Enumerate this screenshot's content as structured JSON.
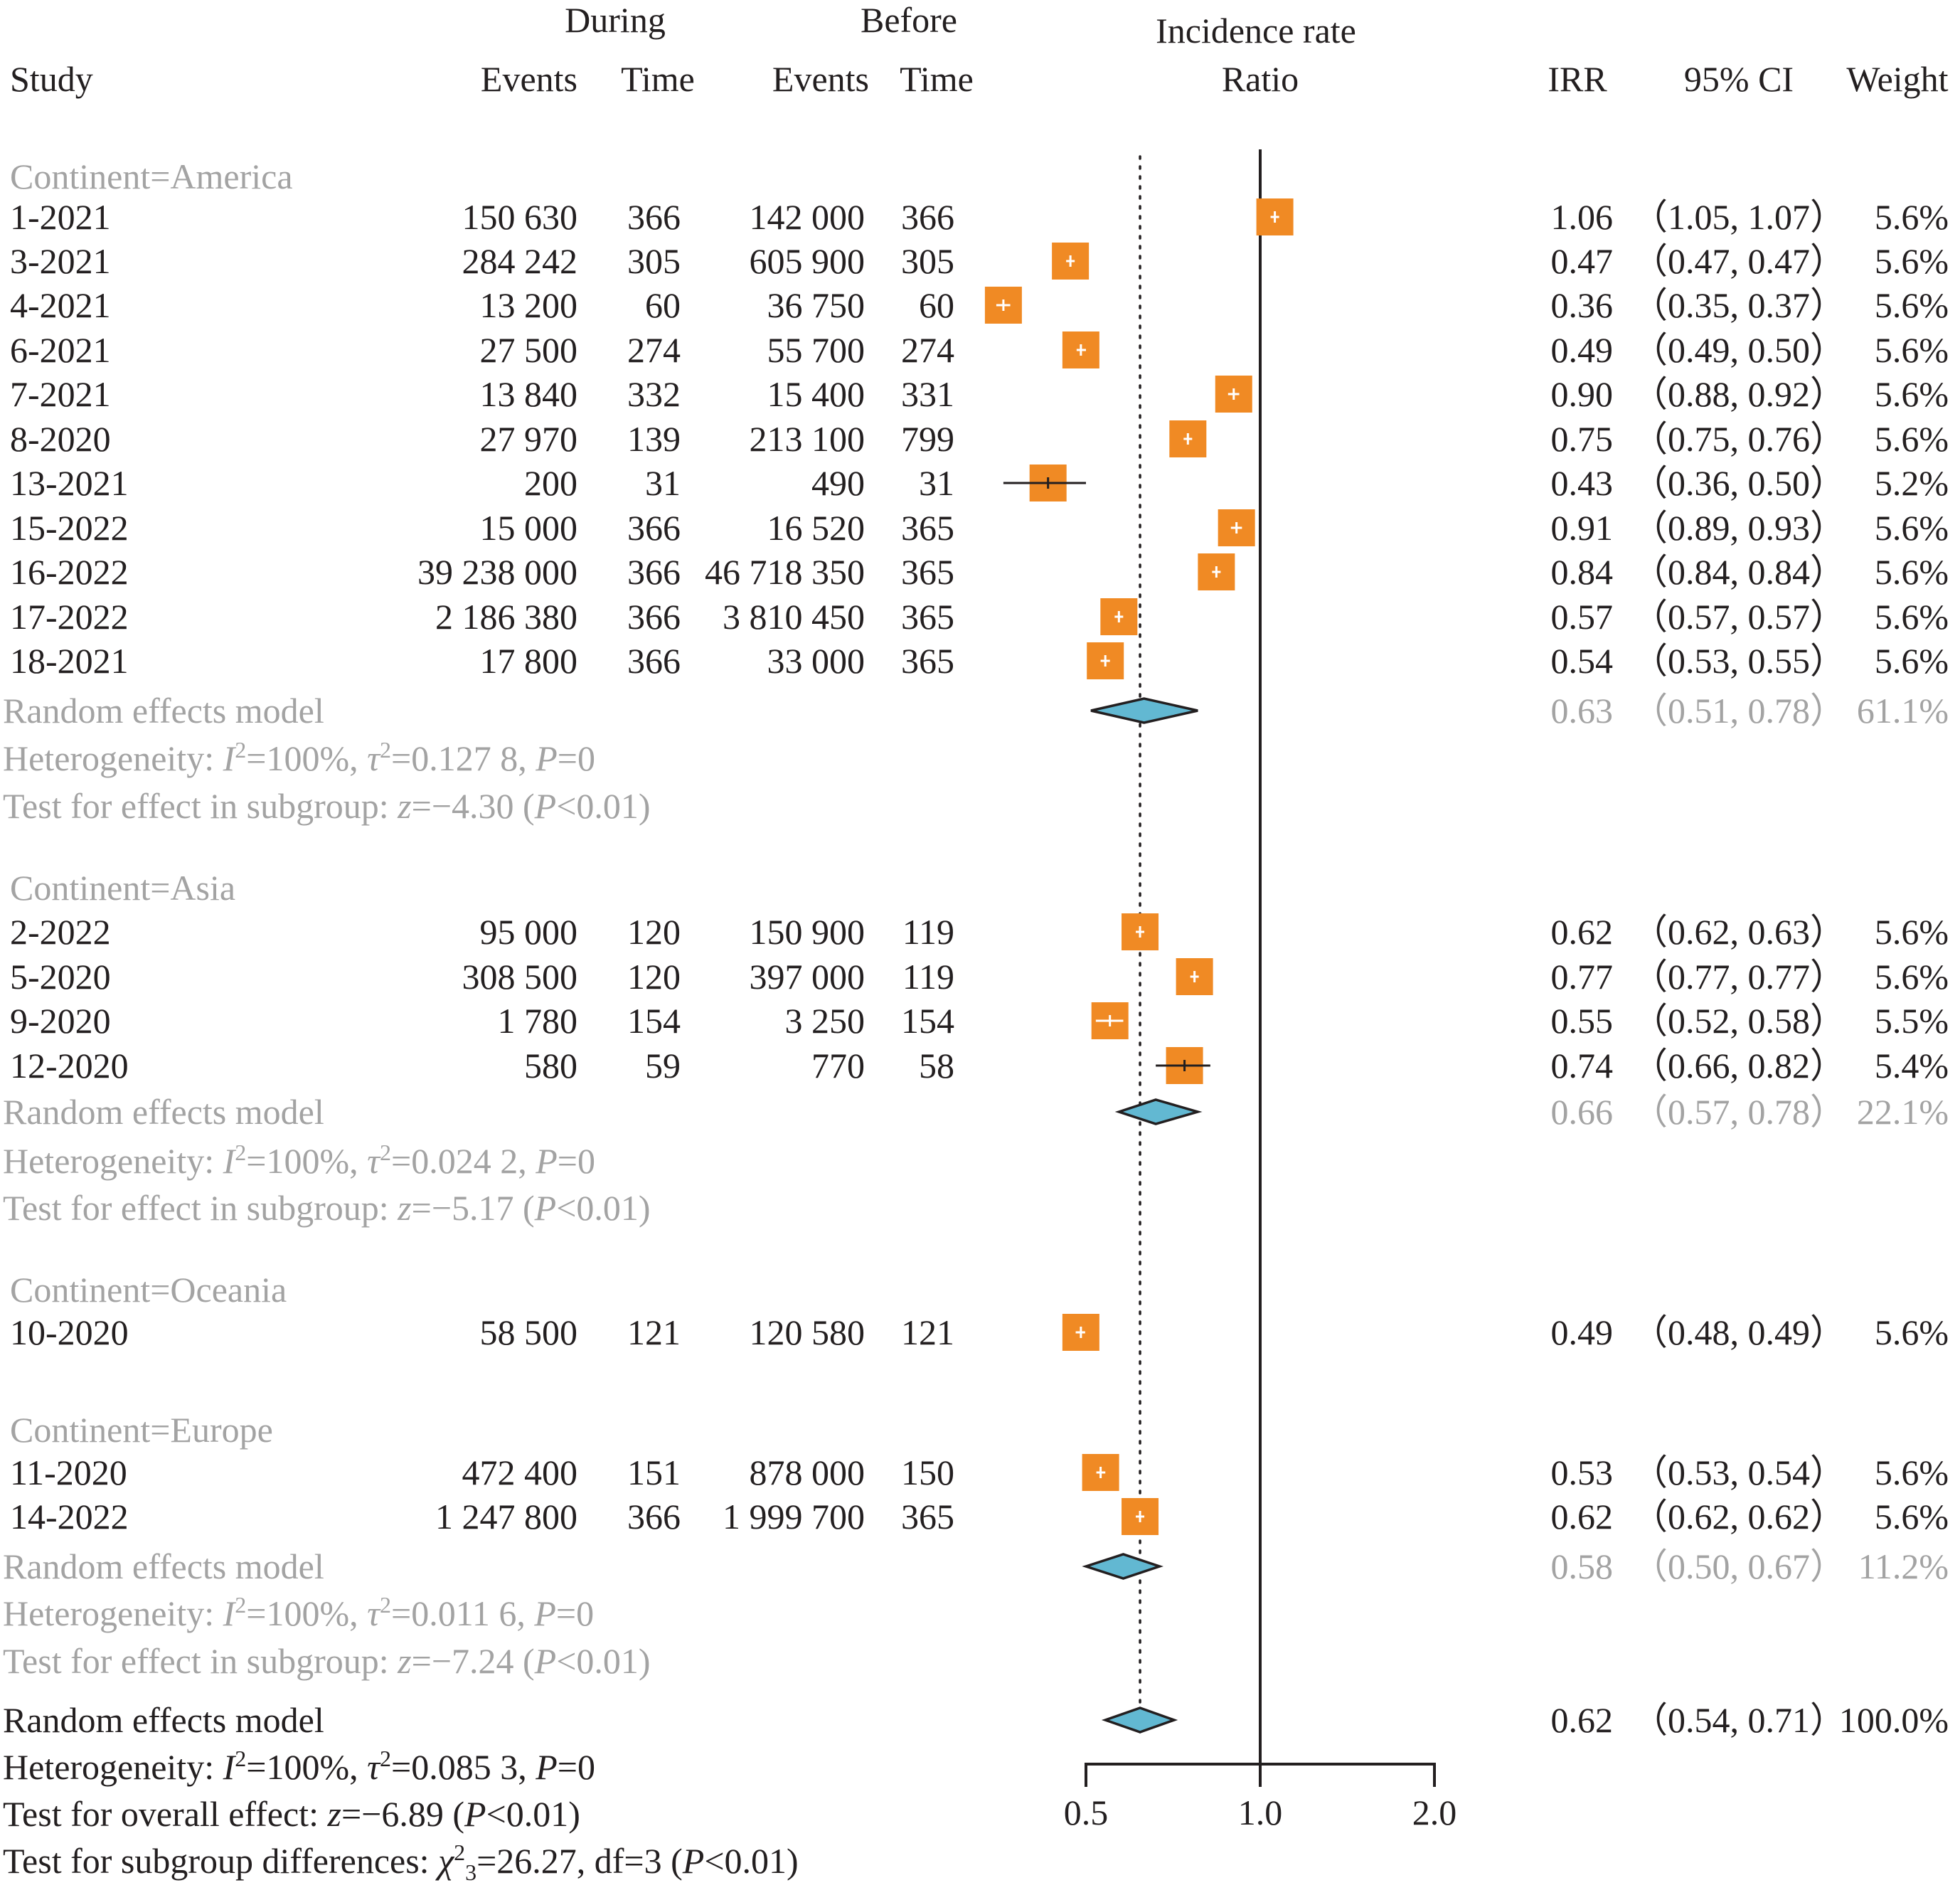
{
  "chart_data": {
    "type": "forest",
    "scale": "log",
    "xlim": [
      0.5,
      2.0
    ],
    "xticks": [
      "0.5",
      "1.0",
      "2.0"
    ],
    "null_line": 1.0,
    "overall_line": 0.62,
    "colors": {
      "box": "#f08a24",
      "diamond": "#62b8d2",
      "grey_text": "#a3a3a3",
      "text": "#231f20"
    },
    "header": {
      "during": "During",
      "before": "Before",
      "study": "Study",
      "events1": "Events",
      "time1": "Time",
      "events2": "Events",
      "time2": "Time",
      "irr_title1": "Incidence rate",
      "irr_title2": "Ratio",
      "irr": "IRR",
      "ci": "95% CI",
      "weight": "Weight"
    },
    "groups": [
      {
        "label": "Continent=America",
        "studies": [
          {
            "study": "1-2021",
            "ev1": "150 630",
            "t1": "366",
            "ev2": "142 000",
            "t2": "366",
            "irr": 1.06,
            "lo": 1.05,
            "hi": 1.07,
            "irr_text": "1.06",
            "ci_text": "（1.05, 1.07）",
            "w_text": "5.6%"
          },
          {
            "study": "3-2021",
            "ev1": "284 242",
            "t1": "305",
            "ev2": "605 900",
            "t2": "305",
            "irr": 0.47,
            "lo": 0.47,
            "hi": 0.47,
            "irr_text": "0.47",
            "ci_text": "（0.47, 0.47）",
            "w_text": "5.6%"
          },
          {
            "study": "4-2021",
            "ev1": "13 200",
            "t1": "60",
            "ev2": "36 750",
            "t2": "60",
            "irr": 0.36,
            "lo": 0.35,
            "hi": 0.37,
            "irr_text": "0.36",
            "ci_text": "（0.35, 0.37）",
            "w_text": "5.6%"
          },
          {
            "study": "6-2021",
            "ev1": "27 500",
            "t1": "274",
            "ev2": "55 700",
            "t2": "274",
            "irr": 0.49,
            "lo": 0.49,
            "hi": 0.5,
            "irr_text": "0.49",
            "ci_text": "（0.49, 0.50）",
            "w_text": "5.6%"
          },
          {
            "study": "7-2021",
            "ev1": "13 840",
            "t1": "332",
            "ev2": "15 400",
            "t2": "331",
            "irr": 0.9,
            "lo": 0.88,
            "hi": 0.92,
            "irr_text": "0.90",
            "ci_text": "（0.88, 0.92）",
            "w_text": "5.6%"
          },
          {
            "study": "8-2020",
            "ev1": "27 970",
            "t1": "139",
            "ev2": "213 100",
            "t2": "799",
            "irr": 0.75,
            "lo": 0.75,
            "hi": 0.76,
            "irr_text": "0.75",
            "ci_text": "（0.75, 0.76）",
            "w_text": "5.6%"
          },
          {
            "study": "13-2021",
            "ev1": "200",
            "t1": "31",
            "ev2": "490",
            "t2": "31",
            "irr": 0.43,
            "lo": 0.36,
            "hi": 0.5,
            "irr_text": "0.43",
            "ci_text": "（0.36, 0.50）",
            "w_text": "5.2%"
          },
          {
            "study": "15-2022",
            "ev1": "15 000",
            "t1": "366",
            "ev2": "16 520",
            "t2": "365",
            "irr": 0.91,
            "lo": 0.89,
            "hi": 0.93,
            "irr_text": "0.91",
            "ci_text": "（0.89, 0.93）",
            "w_text": "5.6%"
          },
          {
            "study": "16-2022",
            "ev1": "39 238 000",
            "t1": "366",
            "ev2": "46 718 350",
            "t2": "365",
            "irr": 0.84,
            "lo": 0.84,
            "hi": 0.84,
            "irr_text": "0.84",
            "ci_text": "（0.84, 0.84）",
            "w_text": "5.6%"
          },
          {
            "study": "17-2022",
            "ev1": "2 186 380",
            "t1": "366",
            "ev2": "3 810 450",
            "t2": "365",
            "irr": 0.57,
            "lo": 0.57,
            "hi": 0.57,
            "irr_text": "0.57",
            "ci_text": "（0.57, 0.57）",
            "w_text": "5.6%"
          },
          {
            "study": "18-2021",
            "ev1": "17 800",
            "t1": "366",
            "ev2": "33 000",
            "t2": "365",
            "irr": 0.54,
            "lo": 0.53,
            "hi": 0.55,
            "irr_text": "0.54",
            "ci_text": "（0.53, 0.55）",
            "w_text": "5.6%"
          }
        ],
        "model": {
          "label": "Random effects model",
          "irr": 0.63,
          "lo": 0.51,
          "hi": 0.78,
          "irr_text": "0.63",
          "ci_text": "（0.51, 0.78）",
          "w_text": "61.1%"
        },
        "heterogeneity": {
          "I2": "100%",
          "tau2": "0.127 8",
          "P": "0"
        },
        "test": {
          "z": "−4.30",
          "p": "0.01"
        }
      },
      {
        "label": "Continent=Asia",
        "studies": [
          {
            "study": "2-2022",
            "ev1": "95 000",
            "t1": "120",
            "ev2": "150 900",
            "t2": "119",
            "irr": 0.62,
            "lo": 0.62,
            "hi": 0.63,
            "irr_text": "0.62",
            "ci_text": "（0.62, 0.63）",
            "w_text": "5.6%"
          },
          {
            "study": "5-2020",
            "ev1": "308 500",
            "t1": "120",
            "ev2": "397 000",
            "t2": "119",
            "irr": 0.77,
            "lo": 0.77,
            "hi": 0.77,
            "irr_text": "0.77",
            "ci_text": "（0.77, 0.77）",
            "w_text": "5.6%"
          },
          {
            "study": "9-2020",
            "ev1": "1 780",
            "t1": "154",
            "ev2": "3 250",
            "t2": "154",
            "irr": 0.55,
            "lo": 0.52,
            "hi": 0.58,
            "irr_text": "0.55",
            "ci_text": "（0.52, 0.58）",
            "w_text": "5.5%"
          },
          {
            "study": "12-2020",
            "ev1": "580",
            "t1": "59",
            "ev2": "770",
            "t2": "58",
            "irr": 0.74,
            "lo": 0.66,
            "hi": 0.82,
            "irr_text": "0.74",
            "ci_text": "（0.66, 0.82）",
            "w_text": "5.4%"
          }
        ],
        "model": {
          "label": "Random effects model",
          "irr": 0.66,
          "lo": 0.57,
          "hi": 0.78,
          "irr_text": "0.66",
          "ci_text": "（0.57, 0.78）",
          "w_text": "22.1%"
        },
        "heterogeneity": {
          "I2": "100%",
          "tau2": "0.024 2",
          "P": "0"
        },
        "test": {
          "z": "−5.17",
          "p": "0.01"
        }
      },
      {
        "label": "Continent=Oceania",
        "studies": [
          {
            "study": "10-2020",
            "ev1": "58 500",
            "t1": "121",
            "ev2": "120 580",
            "t2": "121",
            "irr": 0.49,
            "lo": 0.48,
            "hi": 0.49,
            "irr_text": "0.49",
            "ci_text": "（0.48, 0.49）",
            "w_text": "5.6%"
          }
        ]
      },
      {
        "label": "Continent=Europe",
        "studies": [
          {
            "study": "11-2020",
            "ev1": "472 400",
            "t1": "151",
            "ev2": "878 000",
            "t2": "150",
            "irr": 0.53,
            "lo": 0.53,
            "hi": 0.54,
            "irr_text": "0.53",
            "ci_text": "（0.53, 0.54）",
            "w_text": "5.6%"
          },
          {
            "study": "14-2022",
            "ev1": "1 247 800",
            "t1": "366",
            "ev2": "1 999 700",
            "t2": "365",
            "irr": 0.62,
            "lo": 0.62,
            "hi": 0.62,
            "irr_text": "0.62",
            "ci_text": "（0.62, 0.62）",
            "w_text": "5.6%"
          }
        ],
        "model": {
          "label": "Random effects model",
          "irr": 0.58,
          "lo": 0.5,
          "hi": 0.67,
          "irr_text": "0.58",
          "ci_text": "（0.50, 0.67）",
          "w_text": "11.2%"
        },
        "heterogeneity": {
          "I2": "100%",
          "tau2": "0.011 6",
          "P": "0"
        },
        "test": {
          "z": "−7.24",
          "p": "0.01"
        }
      }
    ],
    "overall": {
      "label": "Random effects model",
      "irr": 0.62,
      "lo": 0.54,
      "hi": 0.71,
      "irr_text": "0.62",
      "ci_text": "（0.54, 0.71）",
      "w_text": "100.0%",
      "heterogeneity": {
        "I2": "100%",
        "tau2": "0.085 3",
        "P": "0"
      },
      "test_overall": {
        "z": "−6.89",
        "p": "0.01"
      },
      "subgroup_diff": {
        "chi2": "26.27",
        "df": "3",
        "p": "0.01"
      }
    },
    "text_labels": {
      "het": "Heterogeneity: ",
      "I": "I",
      "sq": "2",
      "eq100": "=100%, ",
      "tau": "τ",
      "eq": "=",
      "comma_P": ", ",
      "P": "P",
      "test_sub": "Test for effect in subgroup: ",
      "test_overall": "Test for overall effect: ",
      "test_diff": "Test for subgroup differences: ",
      "z": "z",
      "chi": "χ",
      "three": "3",
      "df": ", df=",
      "lt": "<",
      "open": " (",
      "close": ")"
    }
  }
}
